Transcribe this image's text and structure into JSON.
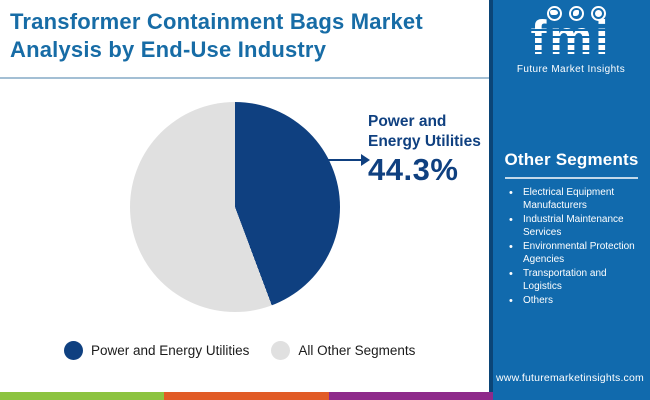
{
  "header": {
    "title_line1": "Transformer Containment Bags Market",
    "title_line2": "Analysis by End-Use Industry"
  },
  "logo": {
    "brand": "fmi",
    "tagline": "Future Market Insights",
    "icons": [
      "usa-map-icon",
      "compass-icon",
      "globe-icon"
    ]
  },
  "sidebar": {
    "heading": "Other Segments",
    "items": [
      "Electrical Equipment Manufacturers",
      "Industrial Maintenance Services",
      "Environmental Protection Agencies",
      "Transportation and Logistics",
      "Others"
    ]
  },
  "chart_data": {
    "type": "pie",
    "title": "Transformer Containment Bags Market Analysis by End-Use Industry",
    "categories": [
      "Power and Energy Utilities",
      "All Other Segments"
    ],
    "values": [
      44.3,
      55.7
    ],
    "colors": [
      "#0f4080",
      "#e0e0e0"
    ],
    "start_angle_deg": 0,
    "direction": "clockwise",
    "legend_position": "bottom",
    "annotation": {
      "label_line1": "Power and",
      "label_line2": "Energy Utilities",
      "value": "44.3%"
    }
  },
  "legend": {
    "items": [
      {
        "label": "Power and Energy Utilities",
        "color": "#0f4080"
      },
      {
        "label": "All Other Segments",
        "color": "#e0e0e0"
      }
    ]
  },
  "footer": {
    "url": "www.futuremarketinsights.com",
    "stripe_colors": [
      "#8cc340",
      "#e15b26",
      "#8e2a8a"
    ]
  },
  "colors": {
    "panel_blue": "#116aad",
    "panel_edge": "#0b4577",
    "title_blue": "#176ca6",
    "navy": "#0f4080",
    "pie_gray": "#e0e0e0",
    "divider": "#a3bfd4"
  }
}
